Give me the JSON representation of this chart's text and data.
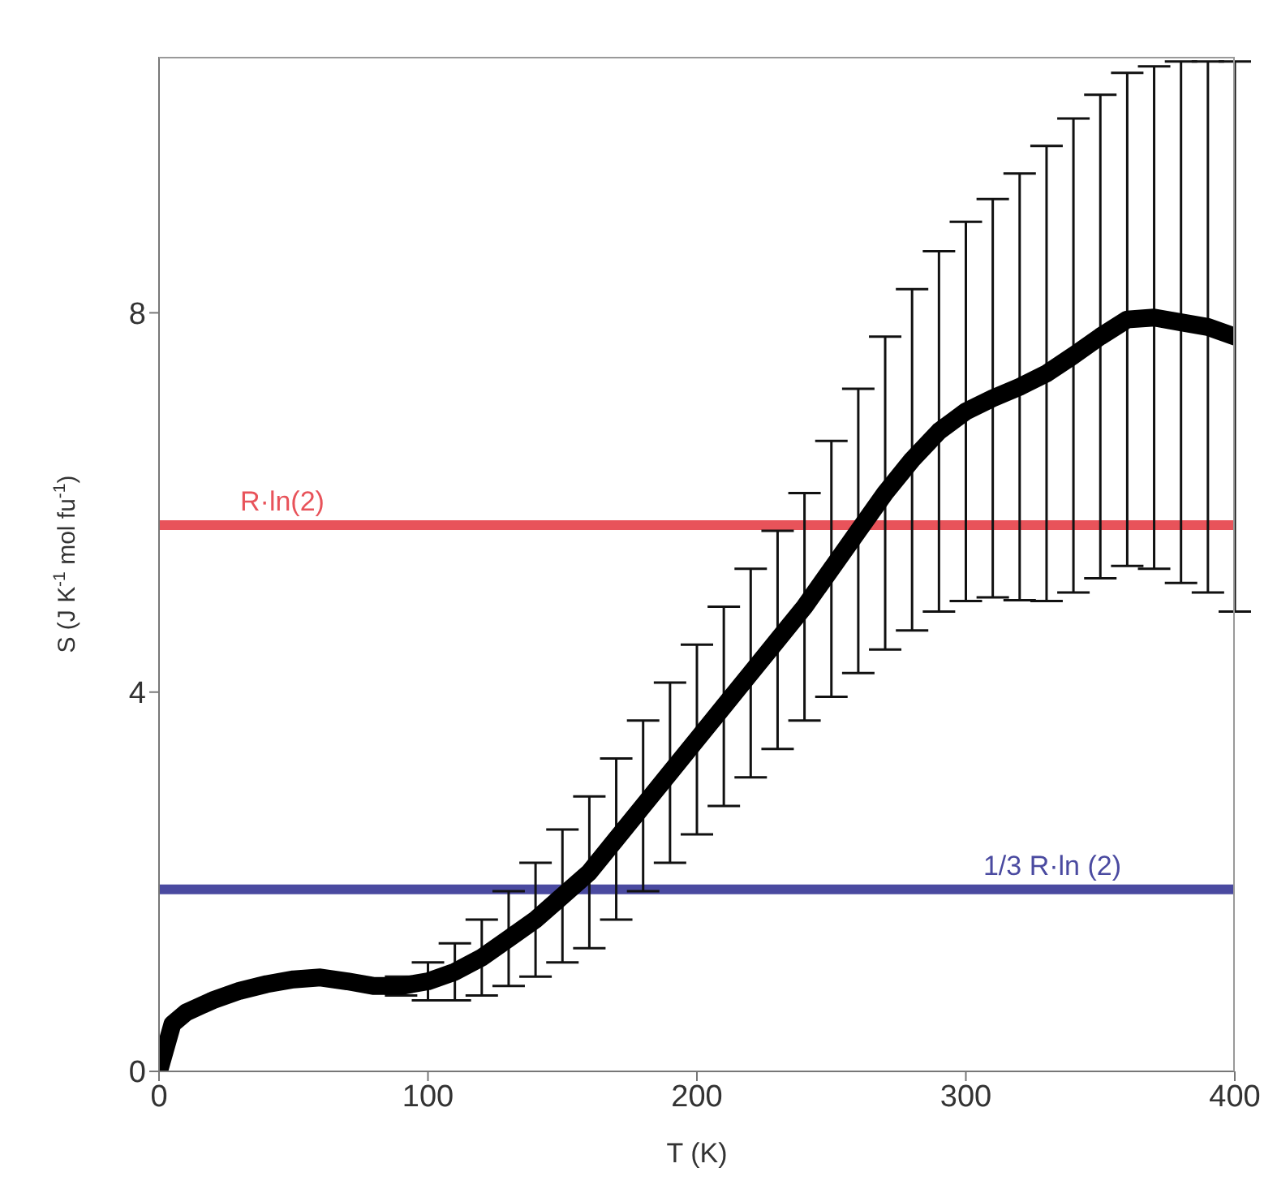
{
  "chart_data": {
    "type": "line",
    "xlabel": "T (K)",
    "ylabel": "S (J K$^{-1}$ mol fu$^{-1}$)",
    "x": [
      0,
      5,
      10,
      20,
      30,
      40,
      50,
      60,
      70,
      80,
      90,
      100,
      110,
      120,
      130,
      140,
      150,
      160,
      170,
      180,
      190,
      200,
      210,
      220,
      230,
      240,
      250,
      260,
      270,
      280,
      290,
      300,
      310,
      320,
      330,
      340,
      350,
      360,
      370,
      380,
      390,
      400
    ],
    "series": [
      {
        "color": "#000000",
        "values": [
          0,
          0.5,
          0.62,
          0.75,
          0.85,
          0.92,
          0.97,
          0.99,
          0.95,
          0.9,
          0.9,
          0.95,
          1.05,
          1.2,
          1.4,
          1.6,
          1.85,
          2.1,
          2.45,
          2.8,
          3.15,
          3.5,
          3.85,
          4.2,
          4.55,
          4.9,
          5.3,
          5.7,
          6.1,
          6.45,
          6.75,
          6.96,
          7.1,
          7.22,
          7.36,
          7.55,
          7.75,
          7.93,
          7.95,
          7.9,
          7.85,
          7.75
        ],
        "errors": [
          null,
          null,
          null,
          null,
          null,
          null,
          null,
          null,
          null,
          null,
          0.1,
          0.2,
          0.3,
          0.4,
          0.5,
          0.6,
          0.7,
          0.8,
          0.85,
          0.9,
          0.95,
          1.0,
          1.05,
          1.1,
          1.15,
          1.2,
          1.35,
          1.5,
          1.65,
          1.8,
          1.9,
          2.0,
          2.1,
          2.25,
          2.4,
          2.5,
          2.55,
          2.6,
          2.65,
          2.75,
          2.8,
          2.9
        ]
      }
    ],
    "xlim": [
      0,
      400
    ],
    "xticks": [
      0,
      100,
      200,
      300,
      400
    ],
    "ylim": [
      0,
      10.7
    ],
    "yticks": [
      0,
      4,
      8
    ],
    "ref_lines": [
      {
        "axis": "y",
        "value": 5.76,
        "label": "R·ln(2)",
        "color": "#e8535a"
      },
      {
        "axis": "y",
        "value": 1.92,
        "label": "1/3 R·ln (2)",
        "color": "#4a4aa0"
      }
    ],
    "marker": "none",
    "line_style": "solid",
    "grid": false,
    "legend": false
  }
}
